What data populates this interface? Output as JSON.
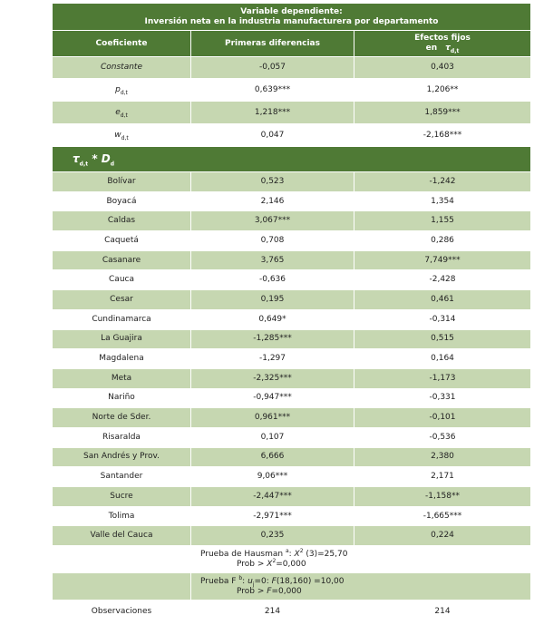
{
  "header": {
    "title_line1": "Variable dependiente:",
    "title_line2": "Inversión neta en la industria manufacturera por departamento"
  },
  "columns": {
    "coef": "Coeficiente",
    "fd": "Primeras diferencias",
    "fe": {
      "line1": "Efectos fijos",
      "line2": "en",
      "symbol": "τ",
      "subscript": "d,t"
    }
  },
  "main_rows": [
    {
      "label": "Constante",
      "fd": "-0,057",
      "fe": "0,403"
    },
    {
      "symbol": "p",
      "subscript": "d,t",
      "fd": "0,639***",
      "fe": "1,206**"
    },
    {
      "symbol": "e",
      "subscript": "d,t",
      "fd": "1,218***",
      "fe": "1,859***"
    },
    {
      "symbol": "w",
      "subscript": "d,t",
      "fd": "0,047",
      "fe": "-2,168***"
    }
  ],
  "section": {
    "symbol": "τ",
    "subscript": "d,t",
    "operator": "*",
    "symbol2": "D",
    "subscript2": "d"
  },
  "departments": [
    {
      "name": "Bolívar",
      "fd": "0,523",
      "fe": "-1,242"
    },
    {
      "name": "Boyacá",
      "fd": "2,146",
      "fe": "1,354"
    },
    {
      "name": "Caldas",
      "fd": "3,067***",
      "fe": "1,155"
    },
    {
      "name": "Caquetá",
      "fd": "0,708",
      "fe": "0,286"
    },
    {
      "name": "Casanare",
      "fd": "3,765",
      "fe": "7,749***"
    },
    {
      "name": "Cauca",
      "fd": "-0,636",
      "fe": "-2,428"
    },
    {
      "name": "Cesar",
      "fd": "0,195",
      "fe": "0,461"
    },
    {
      "name": "Cundinamarca",
      "fd": "0,649*",
      "fe": "-0,314"
    },
    {
      "name": "La Guajira",
      "fd": "-1,285***",
      "fe": "0,515"
    },
    {
      "name": "Magdalena",
      "fd": "-1,297",
      "fe": "0,164"
    },
    {
      "name": "Meta",
      "fd": "-2,325***",
      "fe": "-1,173"
    },
    {
      "name": "Nariño",
      "fd": "-0,947***",
      "fe": "-0,331"
    },
    {
      "name": "Norte de Sder.",
      "fd": "0,961***",
      "fe": "-0,101"
    },
    {
      "name": "Risaralda",
      "fd": "0,107",
      "fe": "-0,536"
    },
    {
      "name": "San Andrés y Prov.",
      "fd": "6,666",
      "fe": "2,380"
    },
    {
      "name": "Santander",
      "fd": "9,06***",
      "fe": "2,171"
    },
    {
      "name": "Sucre",
      "fd": "-2,447***",
      "fe": "-1,158**"
    },
    {
      "name": "Tolima",
      "fd": "-2,971***",
      "fe": "-1,665***"
    },
    {
      "name": "Valle del Cauca",
      "fd": "0,235",
      "fe": "0,224"
    }
  ],
  "tests": [
    {
      "line1": [
        {
          "text": "Prueba de Hausman "
        },
        {
          "sup": "a"
        },
        {
          "text": ": "
        },
        {
          "italic": "X"
        },
        {
          "sup": "2"
        },
        {
          "text": " (3)=25,70"
        }
      ],
      "line2": [
        {
          "text": "Prob > "
        },
        {
          "italic": "X"
        },
        {
          "sup": "2"
        },
        {
          "text": "=0,000"
        }
      ]
    },
    {
      "line1": [
        {
          "text": "Prueba F "
        },
        {
          "sup": "b"
        },
        {
          "text": ": "
        },
        {
          "italic": "u"
        },
        {
          "sub": "j"
        },
        {
          "text": "=0: "
        },
        {
          "italic": "F"
        },
        {
          "text": "(18,160) =10,00"
        }
      ],
      "line2": [
        {
          "text": "Prob > "
        },
        {
          "italic": "F"
        },
        {
          "text": "=0,000"
        }
      ]
    }
  ],
  "observations": {
    "label": "Observaciones",
    "fd": "214",
    "fe": "214"
  }
}
